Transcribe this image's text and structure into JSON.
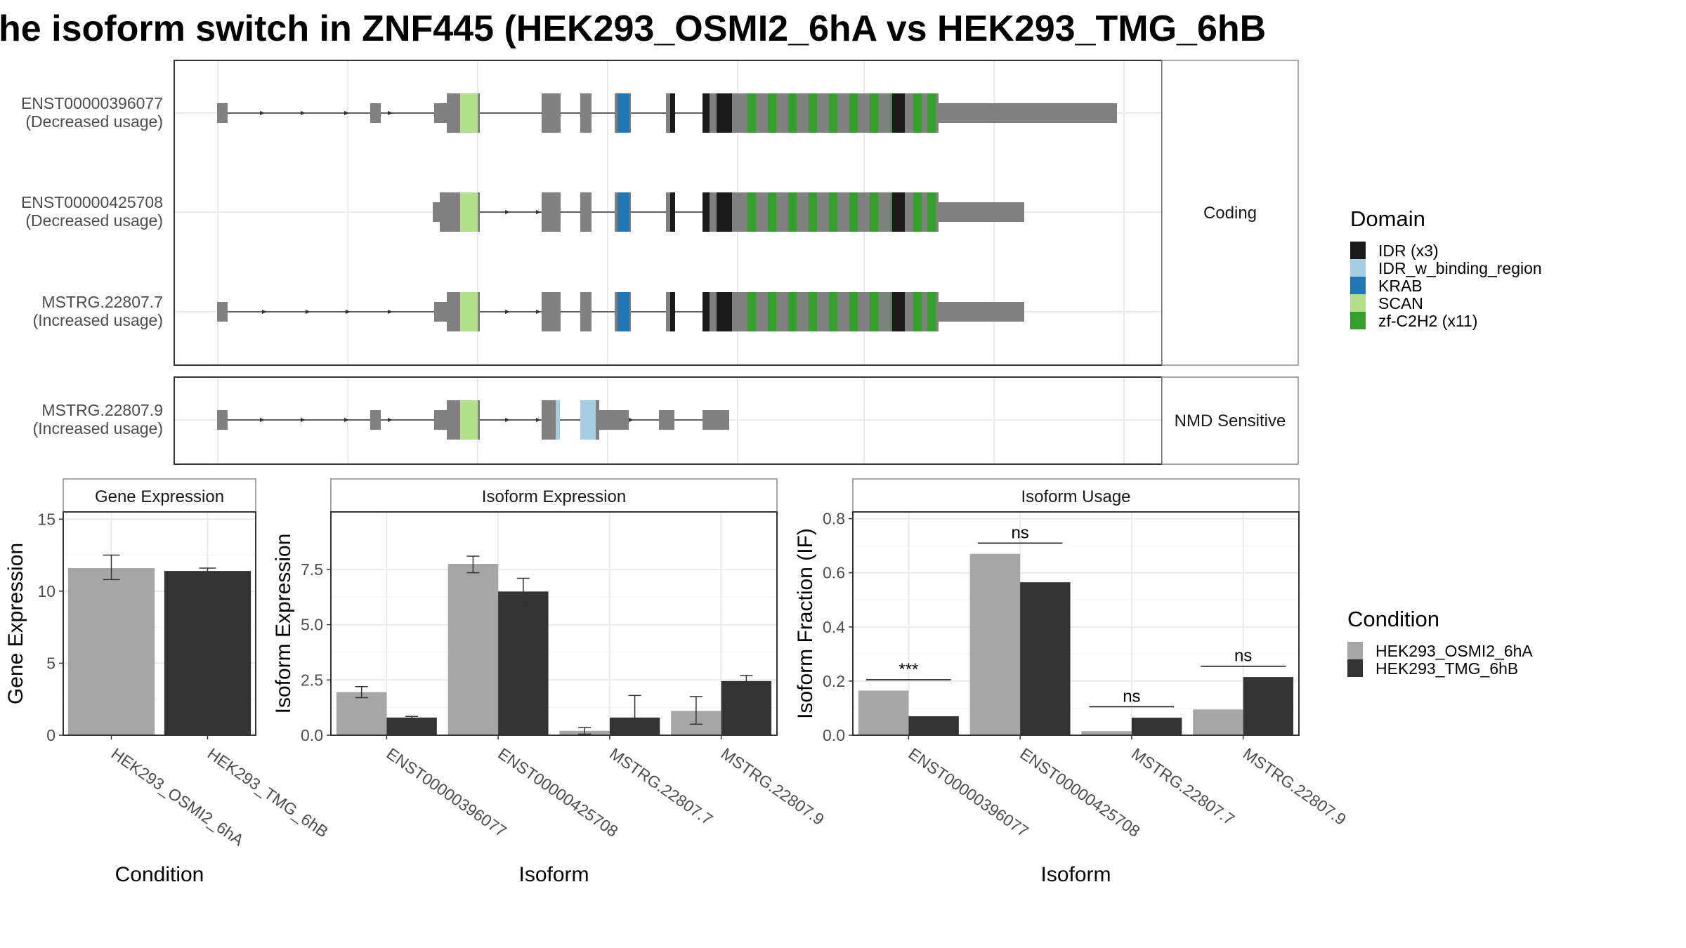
{
  "title": "he isoform switch in ZNF445 (HEK293_OSMI2_6hA vs HEK293_TMG_6hB",
  "colors": {
    "exon": "#808080",
    "IDR": "#1a1a1a",
    "IDR_w_binding_region": "#a6cee3",
    "KRAB": "#1f78b4",
    "SCAN": "#b2df8a",
    "zf": "#33a02c",
    "cond_a": "#a6a6a6",
    "cond_b": "#333333",
    "panel_border": "#333333",
    "strip_border": "#8c8c8c",
    "grid": "#ebebeb",
    "text": "#4d4d4d"
  },
  "structure": {
    "facets": [
      {
        "label": "Coding",
        "isoforms": [
          {
            "id": "ENST00000396077",
            "sub": "(Decreased usage)"
          },
          {
            "id": "ENST00000425708",
            "sub": "(Decreased usage)"
          },
          {
            "id": "MSTRG.22807.7",
            "sub": "(Increased usage)"
          }
        ]
      },
      {
        "label": "NMD Sensitive",
        "isoforms": [
          {
            "id": "MSTRG.22807.9",
            "sub": "(Increased usage)"
          }
        ]
      }
    ]
  },
  "legend_domain": {
    "title": "Domain",
    "items": [
      {
        "label": "IDR (x3)",
        "color": "#1a1a1a"
      },
      {
        "label": "IDR_w_binding_region",
        "color": "#a6cee3"
      },
      {
        "label": "KRAB",
        "color": "#1f78b4"
      },
      {
        "label": "SCAN",
        "color": "#b2df8a"
      },
      {
        "label": "zf-C2H2 (x11)",
        "color": "#33a02c"
      }
    ]
  },
  "legend_condition": {
    "title": "Condition",
    "items": [
      {
        "label": "HEK293_OSMI2_6hA",
        "color": "#a6a6a6"
      },
      {
        "label": "HEK293_TMG_6hB",
        "color": "#333333"
      }
    ]
  },
  "chart_data": [
    {
      "type": "bar",
      "title": "Gene Expression",
      "xlabel": "Condition",
      "ylabel": "Gene Expression",
      "ylim": [
        0,
        15.5
      ],
      "yticks": [
        0,
        5,
        10,
        15
      ],
      "ytick_labels": [
        "0",
        "5",
        "10",
        "15"
      ],
      "categories": [
        "HEK293_OSMI2_6hA",
        "HEK293_TMG_6hB"
      ],
      "values": [
        11.6,
        11.4
      ],
      "errors": [
        [
          10.8,
          12.5
        ],
        [
          11.3,
          11.6
        ]
      ],
      "colors": [
        "#a6a6a6",
        "#333333"
      ]
    },
    {
      "type": "bar",
      "title": "Isoform Expression",
      "xlabel": "Isoform",
      "ylabel": "Isoform Expression",
      "ylim": [
        0,
        10.1
      ],
      "yticks": [
        0,
        2.5,
        5,
        7.5
      ],
      "ytick_labels": [
        "0.0",
        "2.5",
        "5.0",
        "7.5"
      ],
      "categories": [
        "ENST00000396077",
        "ENST00000425708",
        "MSTRG.22807.7",
        "MSTRG.22807.9"
      ],
      "series": [
        {
          "name": "HEK293_OSMI2_6hA",
          "values": [
            1.95,
            7.75,
            0.2,
            1.1
          ],
          "errors": [
            [
              1.7,
              2.2
            ],
            [
              7.35,
              8.1
            ],
            [
              0.05,
              0.35
            ],
            [
              0.5,
              1.75
            ]
          ]
        },
        {
          "name": "HEK293_TMG_6hB",
          "values": [
            0.8,
            6.5,
            0.8,
            2.45
          ],
          "errors": [
            [
              0.75,
              0.85
            ],
            [
              5.8,
              7.1
            ],
            [
              0.0,
              1.8
            ],
            [
              2.25,
              2.7
            ]
          ]
        }
      ]
    },
    {
      "type": "bar",
      "title": "Isoform Usage",
      "xlabel": "Isoform",
      "ylabel": "Isoform Fraction (IF)",
      "ylim": [
        0,
        0.825
      ],
      "yticks": [
        0,
        0.2,
        0.4,
        0.6,
        0.8
      ],
      "ytick_labels": [
        "0.0",
        "0.2",
        "0.4",
        "0.6",
        "0.8"
      ],
      "categories": [
        "ENST00000396077",
        "ENST00000425708",
        "MSTRG.22807.7",
        "MSTRG.22807.9"
      ],
      "series": [
        {
          "name": "HEK293_OSMI2_6hA",
          "values": [
            0.165,
            0.67,
            0.015,
            0.095
          ]
        },
        {
          "name": "HEK293_TMG_6hB",
          "values": [
            0.07,
            0.565,
            0.065,
            0.215
          ]
        }
      ],
      "significance": [
        {
          "category": "ENST00000396077",
          "label": "***",
          "y": 0.205
        },
        {
          "category": "ENST00000425708",
          "label": "ns",
          "y": 0.71
        },
        {
          "category": "MSTRG.22807.7",
          "label": "ns",
          "y": 0.105
        },
        {
          "category": "MSTRG.22807.9",
          "label": "ns",
          "y": 0.255
        }
      ]
    }
  ]
}
